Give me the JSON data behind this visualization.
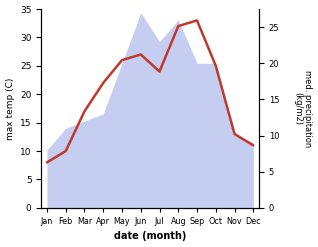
{
  "months": [
    "Jan",
    "Feb",
    "Mar",
    "Apr",
    "May",
    "Jun",
    "Jul",
    "Aug",
    "Sep",
    "Oct",
    "Nov",
    "Dec"
  ],
  "temperature": [
    8,
    10,
    17,
    22,
    26,
    27,
    24,
    32,
    33,
    25,
    13,
    11
  ],
  "precipitation": [
    8,
    11,
    12,
    13,
    20,
    27,
    23,
    26,
    20,
    20,
    10,
    9
  ],
  "temp_color": "#c0392b",
  "precip_fill_color": "#c5cef0",
  "ylabel_left": "max temp (C)",
  "ylabel_right": "med. precipitation\n(kg/m2)",
  "xlabel": "date (month)",
  "ylim_left": [
    0,
    35
  ],
  "ylim_right": [
    0,
    27.5
  ],
  "temp_linewidth": 1.8,
  "bg_color": "#ffffff",
  "right_yticks": [
    0,
    5,
    10,
    15,
    20,
    25
  ],
  "left_yticks": [
    0,
    5,
    10,
    15,
    20,
    25,
    30,
    35
  ]
}
